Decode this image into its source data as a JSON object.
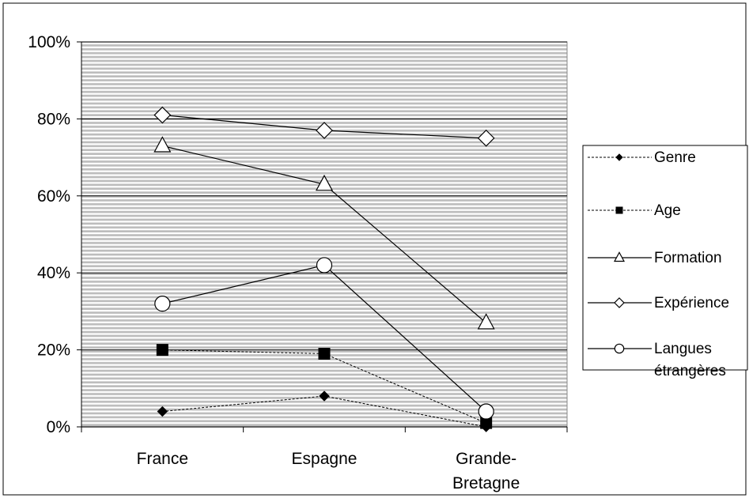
{
  "chart_data": {
    "type": "line",
    "title": "",
    "xlabel": "",
    "ylabel": "",
    "categories": [
      [
        "France"
      ],
      [
        "Espagne"
      ],
      [
        "Grande-",
        "Bretagne"
      ]
    ],
    "ylim": [
      0,
      100
    ],
    "yticks": [
      "0%",
      "20%",
      "40%",
      "60%",
      "80%",
      "100%"
    ],
    "ytick_values": [
      0,
      20,
      40,
      60,
      80,
      100
    ],
    "grid": true,
    "legend_position": "right",
    "series": [
      {
        "name": "Genre",
        "values": [
          4,
          8,
          0
        ],
        "marker": "diamond-filled",
        "line": "dashed"
      },
      {
        "name": "Age",
        "values": [
          20,
          19,
          1
        ],
        "marker": "square-filled",
        "line": "dashed"
      },
      {
        "name": "Formation",
        "values": [
          73,
          63,
          27
        ],
        "marker": "triangle-open",
        "line": "solid"
      },
      {
        "name": "Expérience",
        "values": [
          81,
          77,
          75
        ],
        "marker": "diamond-open",
        "line": "solid"
      },
      {
        "name": "Langues étrangères",
        "values": [
          32,
          42,
          4
        ],
        "marker": "circle-open",
        "line": "solid",
        "legend_lines": [
          "Langues",
          "étrangères"
        ]
      }
    ]
  }
}
